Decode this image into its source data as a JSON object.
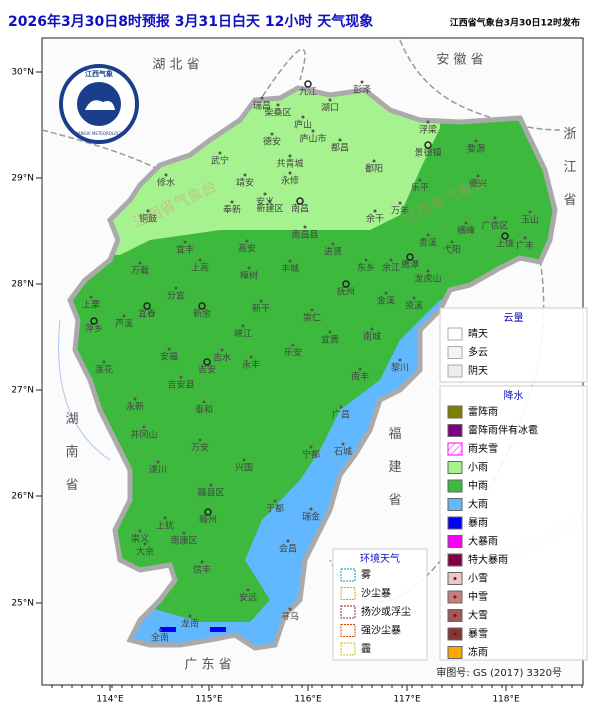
{
  "header": {
    "title": "2026年3月30日8时预报 3月31日白天 12小时 天气现象",
    "issuer": "江西省气象台3月30日12时发布"
  },
  "map": {
    "lat_ticks": [
      "30°N",
      "29°N",
      "28°N",
      "27°N",
      "26°N",
      "25°N"
    ],
    "lon_ticks": [
      "114°E",
      "115°E",
      "116°E",
      "117°E",
      "118°E"
    ],
    "provinces": [
      "湖 北 省",
      "安 徽 省",
      "浙 江 省",
      "湖 南 省",
      "福 建 省",
      "广 东 省"
    ],
    "watermark": "江西省气象台",
    "logo": {
      "name": "江西气象",
      "english": "JIANGXI METEOROLOGY"
    },
    "approval": "审图号: GS (2017) 3320号",
    "cities": [
      "九江",
      "彭泽",
      "湖口",
      "瑞昌",
      "柴桑区",
      "庐山",
      "德安",
      "庐山市",
      "都昌",
      "武宁",
      "共青城",
      "浮梁",
      "景德镇",
      "婺源",
      "修水",
      "鄱阳",
      "永修",
      "靖安",
      "安义",
      "奉新",
      "乐平",
      "德兴",
      "铜鼓",
      "新建区",
      "南昌",
      "余干",
      "万年",
      "玉山",
      "广信区",
      "横峰",
      "上饶",
      "广丰",
      "宜丰",
      "高安",
      "南昌县",
      "进贤",
      "贵溪",
      "弋阳",
      "鹰潭",
      "东乡",
      "余江",
      "龙虎山",
      "万载",
      "上高",
      "丰城",
      "樟树",
      "抚州",
      "金溪",
      "资溪",
      "分宜",
      "宜春",
      "新余",
      "萍乡",
      "芦溪",
      "上栗",
      "新干",
      "崇仁",
      "峡江",
      "宜黄",
      "南城",
      "黎川",
      "安福",
      "吉水",
      "乐安",
      "永丰",
      "莲花",
      "吉安",
      "吉安县",
      "南丰",
      "永新",
      "泰和",
      "广昌",
      "井冈山",
      "遂川",
      "万安",
      "宁都",
      "石城",
      "兴国",
      "赣县区",
      "于都",
      "赣州",
      "瑞金",
      "上犹",
      "南康区",
      "崇义",
      "大余",
      "会昌",
      "信丰",
      "安远",
      "寻乌",
      "龙南",
      "全南"
    ]
  },
  "legends": {
    "cloud": {
      "title": "云量",
      "items": [
        "晴天",
        "多云",
        "阴天"
      ]
    },
    "precip": {
      "title": "降水",
      "items": [
        "雷阵雨",
        "雷阵雨伴有冰雹",
        "雨夹雪",
        "小雨",
        "中雨",
        "大雨",
        "暴雨",
        "大暴雨",
        "特大暴雨",
        "小雪",
        "中雪",
        "大雪",
        "暴雪",
        "冻雨"
      ]
    },
    "env": {
      "title": "环境天气",
      "items": [
        "雾",
        "沙尘暴",
        "扬沙或浮尘",
        "强沙尘暴",
        "霾"
      ]
    }
  }
}
